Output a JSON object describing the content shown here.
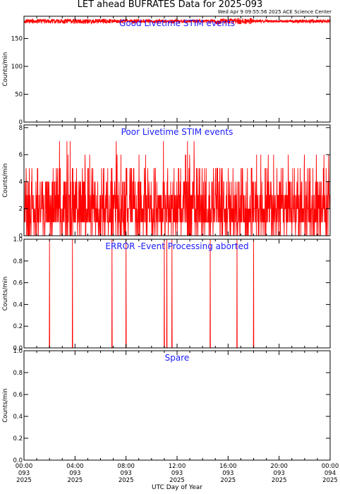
{
  "title": "LET ahead BUFRATES Data for 2025-093",
  "timestamp": "Wed Apr  9 09:55:56 2025 ACE Science Center",
  "xlabel": "UTC Day of Year",
  "colors": {
    "line": "#ff0000",
    "panel_title": "#1a1aff",
    "axis": "#000000"
  },
  "x_ticks": [
    {
      "time": "00:00",
      "doy": "093",
      "year": "2025",
      "hour": 0
    },
    {
      "time": "04:00",
      "doy": "093",
      "year": "2025",
      "hour": 4
    },
    {
      "time": "08:00",
      "doy": "093",
      "year": "2025",
      "hour": 8
    },
    {
      "time": "12:00",
      "doy": "093",
      "year": "2025",
      "hour": 12
    },
    {
      "time": "16:00",
      "doy": "093",
      "year": "2025",
      "hour": 16
    },
    {
      "time": "20:00",
      "doy": "093",
      "year": "2025",
      "hour": 20
    },
    {
      "time": "00:00",
      "doy": "094",
      "year": "2025",
      "hour": 24
    }
  ],
  "chart_data": [
    {
      "type": "line",
      "title": "Good Livetime STIM events",
      "ylabel": "Counts/min",
      "ylim": [
        0,
        190
      ],
      "yticks": [
        0,
        50,
        100,
        150
      ],
      "ytick_labels": [
        "0",
        "50",
        "100",
        "150"
      ],
      "xlim_hours": [
        0,
        24
      ],
      "series": [
        {
          "samples_per_hour": 60,
          "baseline": 181,
          "noise_profile": [
            4,
            4,
            4,
            3,
            3,
            5,
            2,
            3
          ],
          "values": []
        }
      ]
    },
    {
      "type": "line",
      "title": "Poor Livetime STIM events",
      "ylabel": "Counts/min",
      "ylim": [
        0,
        8.2
      ],
      "yticks": [
        0,
        2,
        4,
        6,
        8
      ],
      "ytick_labels": [
        "0",
        "2",
        "4",
        "6",
        "8"
      ],
      "xlim_hours": [
        0,
        24
      ],
      "series": [
        {
          "samples_per_hour": 60,
          "distribution": [
            [
              0,
              0.1
            ],
            [
              1,
              0.27
            ],
            [
              2,
              0.27
            ],
            [
              3,
              0.18
            ],
            [
              4,
              0.1
            ],
            [
              5,
              0.06
            ],
            [
              6,
              0.015
            ],
            [
              7,
              0.01
            ],
            [
              8,
              0.003
            ]
          ],
          "values": []
        }
      ]
    },
    {
      "type": "line",
      "title": "ERROR -Event Processing aborted",
      "ylabel": "Counts/min",
      "ylim": [
        0,
        1.0
      ],
      "yticks": [
        0.0,
        0.2,
        0.4,
        0.6,
        0.8,
        1.0
      ],
      "ytick_labels": [
        "0.0",
        "0.2",
        "0.4",
        "0.6",
        "0.8",
        "1.0"
      ],
      "xlim_hours": [
        0,
        24
      ],
      "series": [
        {
          "baseline": 0,
          "spikes_hours": [
            2.0,
            3.8,
            6.9,
            8.0,
            11.0,
            11.2,
            11.6,
            14.6,
            16.7,
            18.0
          ],
          "spike_value": 1,
          "values": []
        }
      ]
    },
    {
      "type": "line",
      "title": "Spare",
      "ylabel": "Counts/min",
      "ylim": [
        0,
        1.0
      ],
      "yticks": [
        0.0,
        0.2,
        0.4,
        0.6,
        0.8,
        1.0
      ],
      "ytick_labels": [
        "0.0",
        "0.2",
        "0.4",
        "0.6",
        "0.8",
        "1.0"
      ],
      "xlim_hours": [
        0,
        24
      ],
      "series": [
        {
          "baseline": 0,
          "values": []
        }
      ]
    }
  ]
}
